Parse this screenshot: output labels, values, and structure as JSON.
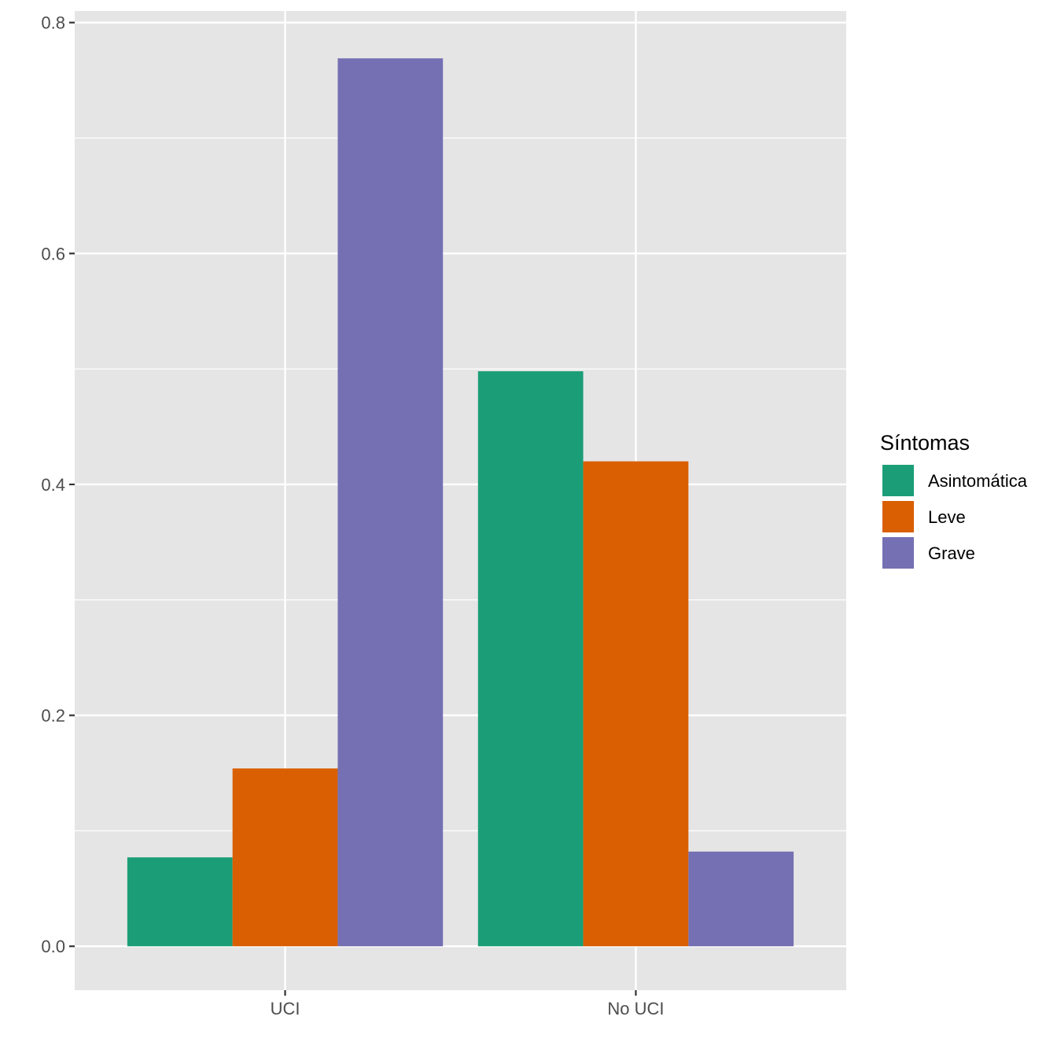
{
  "chart_data": {
    "type": "bar",
    "title": "",
    "xlabel": "",
    "ylabel": "",
    "categories": [
      "UCI",
      "No UCI"
    ],
    "series": [
      {
        "name": "Asintomática",
        "color": "#1B9E77",
        "values": [
          0.077,
          0.498
        ]
      },
      {
        "name": "Leve",
        "color": "#D95F02",
        "values": [
          0.154,
          0.42
        ]
      },
      {
        "name": "Grave",
        "color": "#7570B3",
        "values": [
          0.769,
          0.082
        ]
      }
    ],
    "ylim": [
      -0.038,
      0.81
    ],
    "y_ticks": [
      "0.0",
      "0.2",
      "0.4",
      "0.6",
      "0.8"
    ],
    "grid": true,
    "legend": {
      "title": "Síntomas",
      "position": "right"
    },
    "panel_background": "#E5E5E5",
    "grid_color": "#FFFFFF"
  }
}
